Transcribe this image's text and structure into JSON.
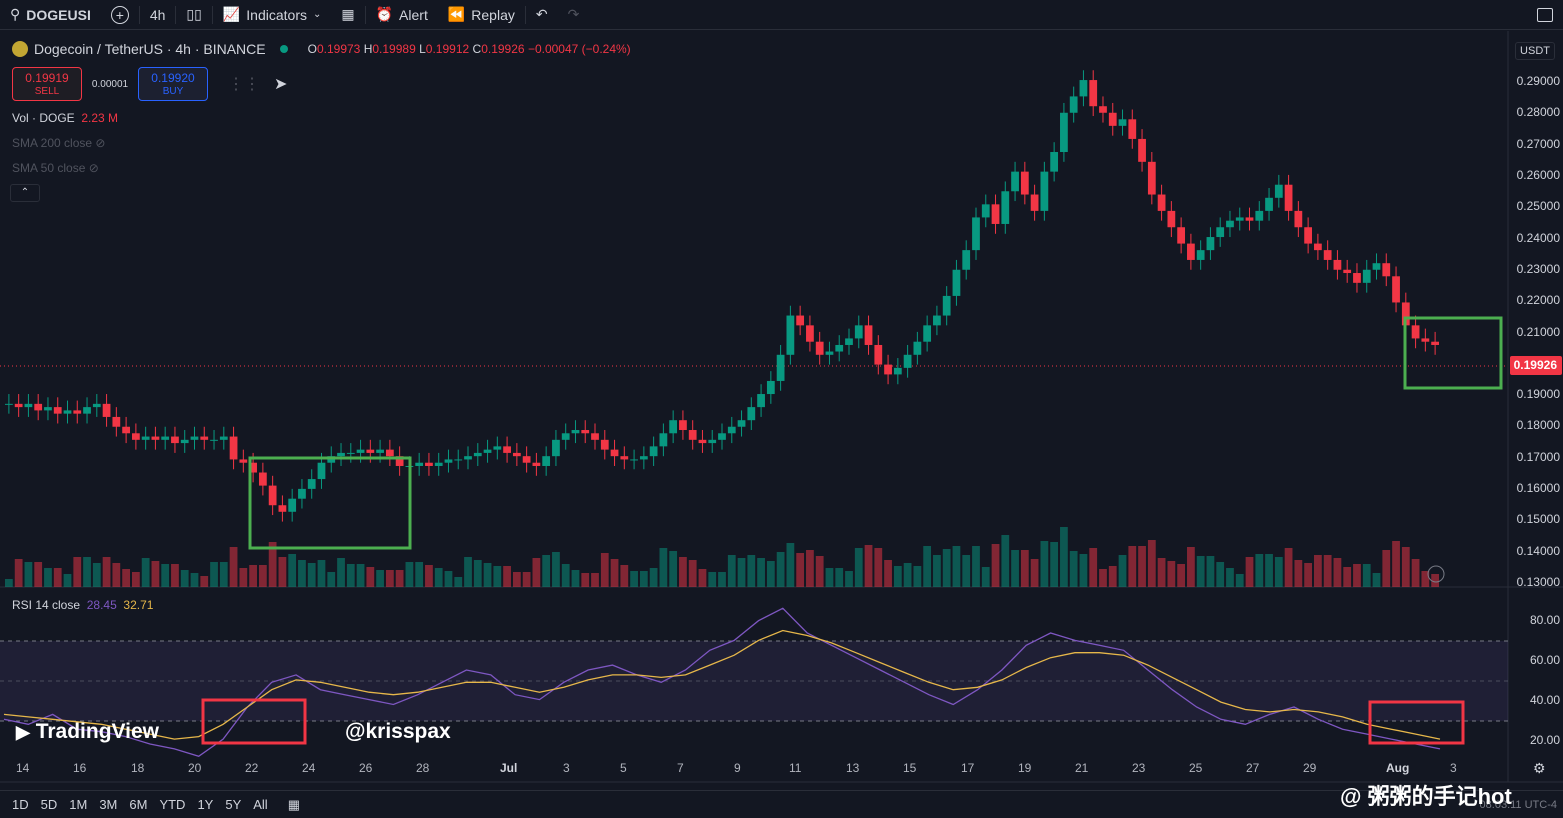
{
  "topbar": {
    "symbol": "DOGEUSI",
    "interval": "4h",
    "indicators": "Indicators",
    "alert": "Alert",
    "replay": "Replay"
  },
  "legend": {
    "title": "Dogecoin / TetherUS · 4h · BINANCE",
    "o_label": "O",
    "o": "0.19973",
    "h_label": "H",
    "h": "0.19989",
    "l_label": "L",
    "l": "0.19912",
    "c_label": "C",
    "c": "0.19926",
    "change": "−0.00047 (−0.24%)"
  },
  "trade": {
    "sell_price": "0.19919",
    "sell_label": "SELL",
    "spread": "0.00001",
    "buy_price": "0.19920",
    "buy_label": "BUY"
  },
  "indicators": {
    "vol": "Vol · DOGE",
    "vol_value": "2.23 M",
    "sma200": "SMA 200 close",
    "sma50": "SMA 50 close",
    "rsi": "RSI 14 close",
    "rsi_value": "28.45",
    "rsi_ma": "32.71"
  },
  "price_axis": {
    "currency": "USDT",
    "labels": [
      "0.29000",
      "0.28000",
      "0.27000",
      "0.26000",
      "0.25000",
      "0.24000",
      "0.23000",
      "0.22000",
      "0.21000",
      "0.19000",
      "0.18000",
      "0.17000",
      "0.16000",
      "0.15000",
      "0.14000",
      "0.13000"
    ],
    "current": "0.19926"
  },
  "rsi_axis": {
    "labels": [
      "80.00",
      "60.00",
      "40.00",
      "20.00"
    ]
  },
  "time_axis": [
    "14",
    "16",
    "18",
    "20",
    "22",
    "24",
    "26",
    "28",
    "Jul",
    "3",
    "5",
    "7",
    "9",
    "11",
    "13",
    "15",
    "17",
    "19",
    "21",
    "23",
    "25",
    "27",
    "29",
    "Aug",
    "3"
  ],
  "watermarks": {
    "tv": "TradingView",
    "handle": "@krisspax",
    "cn": "@ 粥粥的手记hot"
  },
  "bottombar": {
    "ranges": [
      "1D",
      "5D",
      "1M",
      "3M",
      "6M",
      "YTD",
      "1Y",
      "5Y",
      "All"
    ],
    "time": "08:03:11 UTC-4"
  },
  "colors": {
    "up": "#089981",
    "down": "#f23645",
    "rsi": "#7e57c2",
    "rsi_ma": "#e6b74a",
    "box_green": "#4caf50",
    "box_red": "#f23645"
  },
  "chart_data": {
    "type": "candlestick",
    "price_range": [
      0.125,
      0.295
    ],
    "closes": [
      0.181,
      0.18,
      0.181,
      0.179,
      0.18,
      0.178,
      0.179,
      0.178,
      0.18,
      0.181,
      0.177,
      0.174,
      0.172,
      0.17,
      0.171,
      0.17,
      0.171,
      0.169,
      0.17,
      0.171,
      0.17,
      0.17,
      0.171,
      0.164,
      0.163,
      0.16,
      0.156,
      0.15,
      0.148,
      0.152,
      0.155,
      0.158,
      0.163,
      0.165,
      0.166,
      0.166,
      0.167,
      0.166,
      0.167,
      0.165,
      0.162,
      0.162,
      0.163,
      0.162,
      0.163,
      0.164,
      0.164,
      0.165,
      0.166,
      0.167,
      0.168,
      0.166,
      0.165,
      0.163,
      0.162,
      0.165,
      0.17,
      0.172,
      0.173,
      0.172,
      0.17,
      0.167,
      0.165,
      0.164,
      0.164,
      0.165,
      0.168,
      0.172,
      0.176,
      0.173,
      0.17,
      0.169,
      0.17,
      0.172,
      0.174,
      0.176,
      0.18,
      0.184,
      0.188,
      0.196,
      0.208,
      0.205,
      0.2,
      0.196,
      0.197,
      0.199,
      0.201,
      0.205,
      0.199,
      0.193,
      0.19,
      0.192,
      0.196,
      0.2,
      0.205,
      0.208,
      0.214,
      0.222,
      0.228,
      0.238,
      0.242,
      0.236,
      0.246,
      0.252,
      0.245,
      0.24,
      0.252,
      0.258,
      0.27,
      0.275,
      0.28,
      0.272,
      0.27,
      0.266,
      0.268,
      0.262,
      0.255,
      0.245,
      0.24,
      0.235,
      0.23,
      0.225,
      0.228,
      0.232,
      0.235,
      0.237,
      0.238,
      0.237,
      0.24,
      0.244,
      0.248,
      0.24,
      0.235,
      0.23,
      0.228,
      0.225,
      0.222,
      0.221,
      0.218,
      0.222,
      0.224,
      0.22,
      0.212,
      0.205,
      0.201,
      0.2,
      0.199
    ],
    "rsi_range": [
      15,
      90
    ],
    "rsi_sample": [
      40,
      38,
      42,
      36,
      35,
      33,
      30,
      28,
      25,
      32,
      45,
      55,
      58,
      52,
      50,
      48,
      46,
      50,
      55,
      60,
      58,
      50,
      48,
      55,
      60,
      62,
      58,
      55,
      60,
      68,
      72,
      80,
      85,
      75,
      70,
      65,
      60,
      55,
      50,
      46,
      52,
      60,
      70,
      75,
      72,
      70,
      68,
      60,
      52,
      45,
      40,
      38,
      42,
      45,
      40,
      36,
      34,
      32,
      30,
      28
    ],
    "sma_overlay": [
      42,
      41,
      40,
      39,
      38,
      36,
      34,
      32,
      33,
      38,
      45,
      52,
      56,
      55,
      53,
      51,
      50,
      51,
      53,
      55,
      55,
      53,
      51,
      53,
      56,
      58,
      58,
      57,
      58,
      62,
      66,
      72,
      76,
      74,
      71,
      67,
      63,
      59,
      55,
      52,
      53,
      56,
      61,
      65,
      67,
      67,
      66,
      62,
      57,
      52,
      47,
      44,
      43,
      44,
      43,
      41,
      38,
      36,
      34,
      32
    ]
  }
}
